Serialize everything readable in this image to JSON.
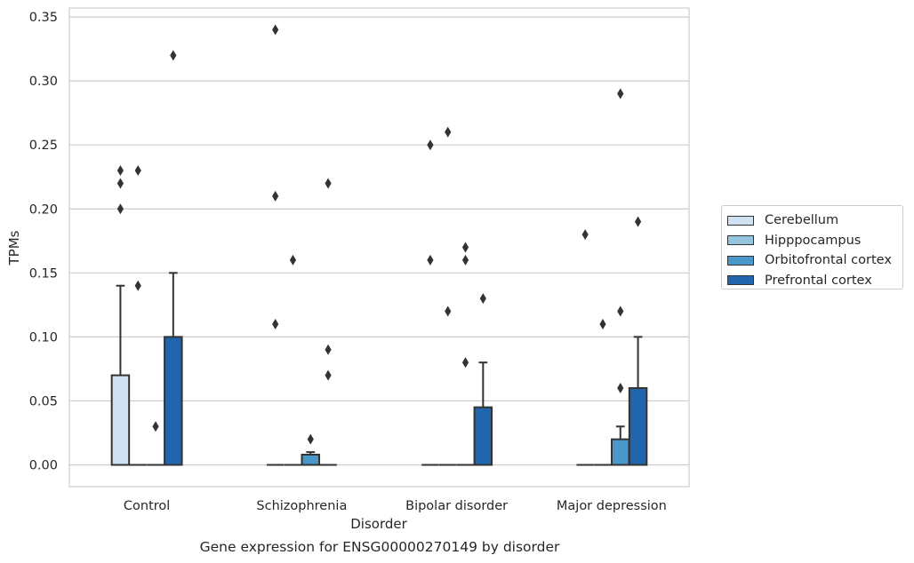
{
  "caption": "Gene expression for ENSG00000270149 by disorder",
  "chart_data": {
    "type": "box",
    "xlabel": "Disorder",
    "ylabel": "TPMs",
    "ylim": [
      -0.017,
      0.357
    ],
    "yticks": [
      "0.00",
      "0.05",
      "0.10",
      "0.15",
      "0.20",
      "0.25",
      "0.30",
      "0.35"
    ],
    "ytick_values": [
      0,
      0.05,
      0.1,
      0.15,
      0.2,
      0.25,
      0.3,
      0.35
    ],
    "grid": "horizontal",
    "legend_position": "right",
    "categories": [
      "Control",
      "Schizophrenia",
      "Bipolar disorder",
      "Major depression"
    ],
    "series": [
      {
        "name": "Cerebellum",
        "color": "#d0e1f2",
        "boxes": [
          {
            "q1": 0,
            "median": 0,
            "q3": 0.07,
            "whisker_low": 0,
            "whisker_high": 0.14,
            "outliers": [
              0.2,
              0.22,
              0.23
            ]
          },
          {
            "q1": 0,
            "median": 0,
            "q3": 0,
            "whisker_low": 0,
            "whisker_high": 0,
            "outliers": [
              0.11,
              0.21,
              0.34
            ]
          },
          {
            "q1": 0,
            "median": 0,
            "q3": 0,
            "whisker_low": 0,
            "whisker_high": 0,
            "outliers": [
              0.16,
              0.25
            ]
          },
          {
            "q1": 0,
            "median": 0,
            "q3": 0,
            "whisker_low": 0,
            "whisker_high": 0,
            "outliers": [
              0.18
            ]
          }
        ]
      },
      {
        "name": "Hipppocampus",
        "color": "#94c4df",
        "boxes": [
          {
            "q1": 0,
            "median": 0,
            "q3": 0,
            "whisker_low": 0,
            "whisker_high": 0,
            "outliers": [
              0.14,
              0.23
            ]
          },
          {
            "q1": 0,
            "median": 0,
            "q3": 0,
            "whisker_low": 0,
            "whisker_high": 0,
            "outliers": [
              0.16
            ]
          },
          {
            "q1": 0,
            "median": 0,
            "q3": 0,
            "whisker_low": 0,
            "whisker_high": 0,
            "outliers": [
              0.12,
              0.26
            ]
          },
          {
            "q1": 0,
            "median": 0,
            "q3": 0,
            "whisker_low": 0,
            "whisker_high": 0,
            "outliers": [
              0.11
            ]
          }
        ]
      },
      {
        "name": "Orbitofrontal cortex",
        "color": "#4a98c9",
        "boxes": [
          {
            "q1": 0,
            "median": 0,
            "q3": 0,
            "whisker_low": 0,
            "whisker_high": 0,
            "outliers": [
              0.03
            ]
          },
          {
            "q1": 0,
            "median": 0,
            "q3": 0.008,
            "whisker_low": 0,
            "whisker_high": 0.01,
            "outliers": [
              0.02
            ]
          },
          {
            "q1": 0,
            "median": 0,
            "q3": 0,
            "whisker_low": 0,
            "whisker_high": 0,
            "outliers": [
              0.08,
              0.16,
              0.17
            ]
          },
          {
            "q1": 0,
            "median": 0,
            "q3": 0.02,
            "whisker_low": 0,
            "whisker_high": 0.03,
            "outliers": [
              0.06,
              0.12,
              0.29
            ]
          }
        ]
      },
      {
        "name": "Prefrontal cortex",
        "color": "#2166ac",
        "boxes": [
          {
            "q1": 0,
            "median": 0,
            "q3": 0.1,
            "whisker_low": 0,
            "whisker_high": 0.15,
            "outliers": [
              0.32
            ]
          },
          {
            "q1": 0,
            "median": 0,
            "q3": 0,
            "whisker_low": 0,
            "whisker_high": 0,
            "outliers": [
              0.07,
              0.09,
              0.22
            ]
          },
          {
            "q1": 0,
            "median": 0,
            "q3": 0.045,
            "whisker_low": 0,
            "whisker_high": 0.08,
            "outliers": [
              0.13
            ]
          },
          {
            "q1": 0,
            "median": 0,
            "q3": 0.06,
            "whisker_low": 0,
            "whisker_high": 0.1,
            "outliers": [
              0.19
            ]
          }
        ]
      }
    ]
  }
}
